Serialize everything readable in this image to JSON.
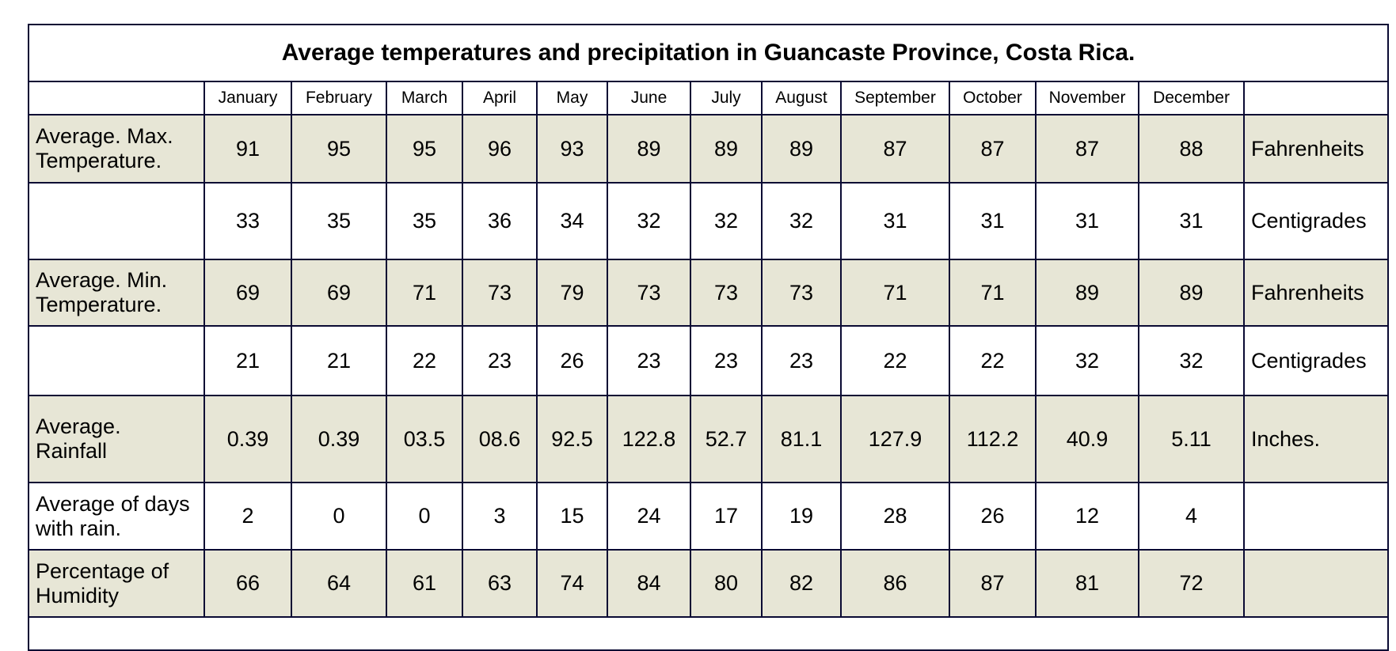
{
  "table": {
    "title": "Average temperatures and precipitation in Guancaste Province, Costa Rica.",
    "months": [
      "January",
      "February",
      "March",
      "April",
      "May",
      "June",
      "July",
      "August",
      "September",
      "October",
      "November",
      "December"
    ],
    "rows": [
      {
        "label": "Average. Max. Temperature.",
        "values": [
          "91",
          "95",
          "95",
          "96",
          "93",
          "89",
          "89",
          "89",
          "87",
          "87",
          "87",
          "88"
        ],
        "unit": "Fahrenheits"
      },
      {
        "values": [
          "33",
          "35",
          "35",
          "36",
          "34",
          "32",
          "32",
          "32",
          "31",
          "31",
          "31",
          "31"
        ],
        "unit": "Centigrades"
      },
      {
        "label": "Average. Min. Temperature.",
        "values": [
          "69",
          "69",
          "71",
          "73",
          "79",
          "73",
          "73",
          "73",
          "71",
          "71",
          "89",
          "89"
        ],
        "unit": "Fahrenheits"
      },
      {
        "values": [
          "21",
          "21",
          "22",
          "23",
          "26",
          "23",
          "23",
          "23",
          "22",
          "22",
          "32",
          "32"
        ],
        "unit": "Centigrades"
      },
      {
        "label": "Average. Rainfall",
        "values": [
          "0.39",
          "0.39",
          "03.5",
          "08.6",
          "92.5",
          "122.8",
          "52.7",
          "81.1",
          "127.9",
          "112.2",
          "40.9",
          "5.11"
        ],
        "unit": "Inches."
      },
      {
        "label": "Average of days with rain.",
        "values": [
          "2",
          "0",
          "0",
          "3",
          "15",
          "24",
          "17",
          "19",
          "28",
          "26",
          "12",
          "4"
        ]
      },
      {
        "label": "Percentage of Humidity",
        "values": [
          "66",
          "64",
          "61",
          "63",
          "74",
          "84",
          "80",
          "82",
          "86",
          "87",
          "81",
          "72"
        ]
      }
    ]
  }
}
